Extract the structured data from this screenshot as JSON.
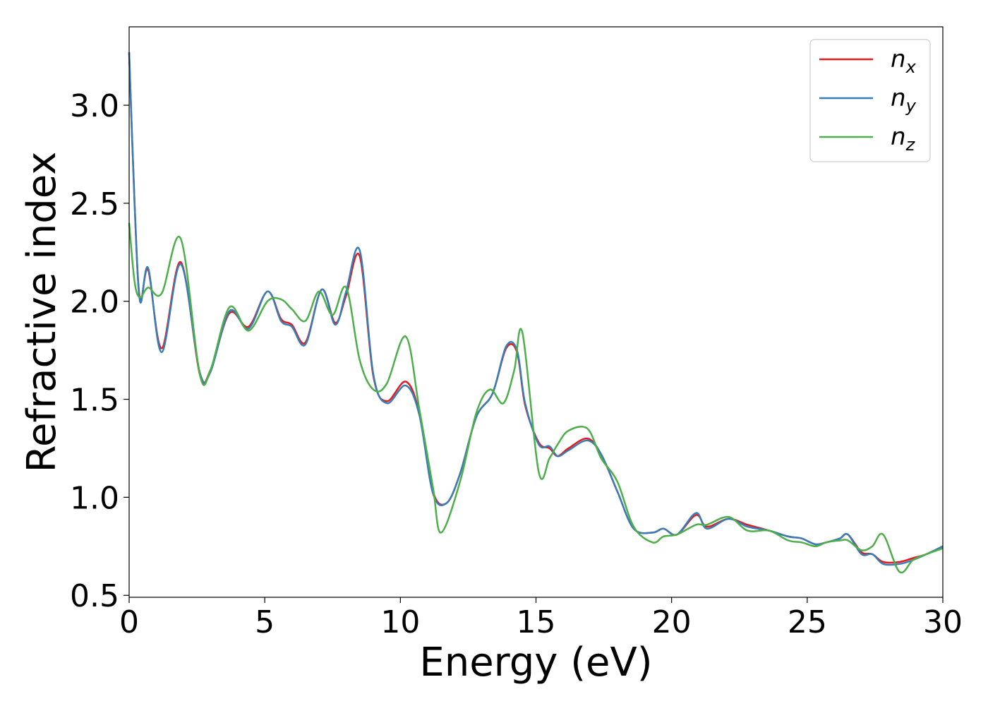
{
  "chart_data": {
    "type": "line",
    "xlabel": "Energy (eV)",
    "ylabel": "Refractive index",
    "xlim": [
      0,
      30
    ],
    "ylim": [
      0.49,
      3.4
    ],
    "xticks": [
      0,
      5,
      10,
      15,
      20,
      25,
      30
    ],
    "yticks": [
      0.5,
      1.0,
      1.5,
      2.0,
      2.5,
      3.0
    ],
    "grid": false,
    "legend_position": "top-right",
    "series": [
      {
        "name": "n",
        "sub": "x",
        "color": "#e41a1c",
        "x": [
          0,
          0.2,
          0.4,
          0.7,
          1.2,
          1.9,
          2.6,
          3.0,
          3.7,
          4.4,
          5.1,
          5.6,
          6.0,
          6.5,
          7.1,
          7.6,
          8.0,
          8.5,
          9.0,
          9.5,
          10.2,
          10.7,
          11.2,
          11.7,
          12.2,
          12.8,
          13.4,
          13.9,
          14.3,
          14.6,
          15.1,
          15.5,
          15.8,
          16.2,
          16.9,
          17.4,
          18.0,
          18.6,
          19.3,
          19.7,
          20.2,
          20.9,
          21.3,
          22.1,
          22.8,
          23.6,
          24.3,
          24.8,
          25.3,
          25.7,
          26.2,
          26.5,
          27.0,
          27.4,
          27.8,
          28.4,
          28.9,
          29.4,
          30.0
        ],
        "y": [
          3.27,
          2.5,
          2.01,
          2.16,
          1.76,
          2.2,
          1.63,
          1.65,
          1.94,
          1.87,
          2.05,
          1.91,
          1.88,
          1.79,
          2.06,
          1.89,
          2.03,
          2.23,
          1.62,
          1.49,
          1.59,
          1.43,
          1.03,
          0.97,
          1.12,
          1.41,
          1.53,
          1.76,
          1.74,
          1.47,
          1.28,
          1.25,
          1.21,
          1.25,
          1.3,
          1.22,
          1.03,
          0.84,
          0.82,
          0.84,
          0.81,
          0.91,
          0.85,
          0.89,
          0.86,
          0.83,
          0.8,
          0.79,
          0.76,
          0.77,
          0.79,
          0.81,
          0.72,
          0.71,
          0.67,
          0.67,
          0.69,
          0.71,
          0.75
        ]
      },
      {
        "name": "n",
        "sub": "y",
        "color": "#377eb8",
        "x": [
          0,
          0.2,
          0.4,
          0.7,
          1.2,
          1.9,
          2.6,
          3.0,
          3.7,
          4.4,
          5.1,
          5.6,
          6.0,
          6.5,
          7.1,
          7.6,
          8.0,
          8.5,
          9.0,
          9.5,
          10.2,
          10.7,
          11.2,
          11.7,
          12.2,
          12.8,
          13.4,
          13.9,
          14.3,
          14.6,
          15.1,
          15.5,
          15.8,
          16.2,
          16.9,
          17.4,
          18.0,
          18.6,
          19.3,
          19.7,
          20.2,
          20.9,
          21.3,
          22.1,
          22.8,
          23.6,
          24.3,
          24.8,
          25.3,
          25.7,
          26.2,
          26.5,
          27.0,
          27.4,
          27.8,
          28.4,
          28.9,
          29.4,
          30.0
        ],
        "y": [
          3.27,
          2.5,
          2.0,
          2.17,
          1.74,
          2.19,
          1.64,
          1.64,
          1.95,
          1.86,
          2.05,
          1.9,
          1.87,
          1.78,
          2.06,
          1.88,
          2.05,
          2.26,
          1.63,
          1.48,
          1.57,
          1.42,
          1.02,
          0.97,
          1.12,
          1.41,
          1.53,
          1.77,
          1.75,
          1.48,
          1.27,
          1.26,
          1.21,
          1.24,
          1.29,
          1.22,
          1.03,
          0.84,
          0.82,
          0.84,
          0.81,
          0.92,
          0.84,
          0.89,
          0.85,
          0.83,
          0.8,
          0.79,
          0.76,
          0.77,
          0.79,
          0.81,
          0.71,
          0.71,
          0.66,
          0.66,
          0.68,
          0.71,
          0.75
        ]
      },
      {
        "name": "n",
        "sub": "z",
        "color": "#4daf4a",
        "x": [
          0,
          0.2,
          0.4,
          0.7,
          1.2,
          1.9,
          2.6,
          3.0,
          3.7,
          4.4,
          5.1,
          5.6,
          6.0,
          6.5,
          7.0,
          7.5,
          8.0,
          8.5,
          9.0,
          9.5,
          10.2,
          10.7,
          11.2,
          11.5,
          12.2,
          12.8,
          13.3,
          13.8,
          14.2,
          14.5,
          15.1,
          15.5,
          15.8,
          16.2,
          16.9,
          17.4,
          18.0,
          18.6,
          19.3,
          19.7,
          20.2,
          20.9,
          21.3,
          22.1,
          22.8,
          23.6,
          24.3,
          24.8,
          25.3,
          25.7,
          26.2,
          26.5,
          27.0,
          27.4,
          27.8,
          28.4,
          28.9,
          29.4,
          30.0
        ],
        "y": [
          2.4,
          2.1,
          2.02,
          2.07,
          2.04,
          2.32,
          1.63,
          1.65,
          1.97,
          1.85,
          2.0,
          2.01,
          1.96,
          1.9,
          2.05,
          1.93,
          2.07,
          1.7,
          1.55,
          1.58,
          1.82,
          1.45,
          1.05,
          0.82,
          1.08,
          1.43,
          1.55,
          1.48,
          1.65,
          1.84,
          1.13,
          1.2,
          1.27,
          1.34,
          1.35,
          1.2,
          1.08,
          0.85,
          0.77,
          0.8,
          0.81,
          0.86,
          0.86,
          0.9,
          0.83,
          0.83,
          0.78,
          0.77,
          0.75,
          0.77,
          0.78,
          0.78,
          0.73,
          0.75,
          0.81,
          0.62,
          0.68,
          0.71,
          0.74
        ]
      }
    ]
  }
}
